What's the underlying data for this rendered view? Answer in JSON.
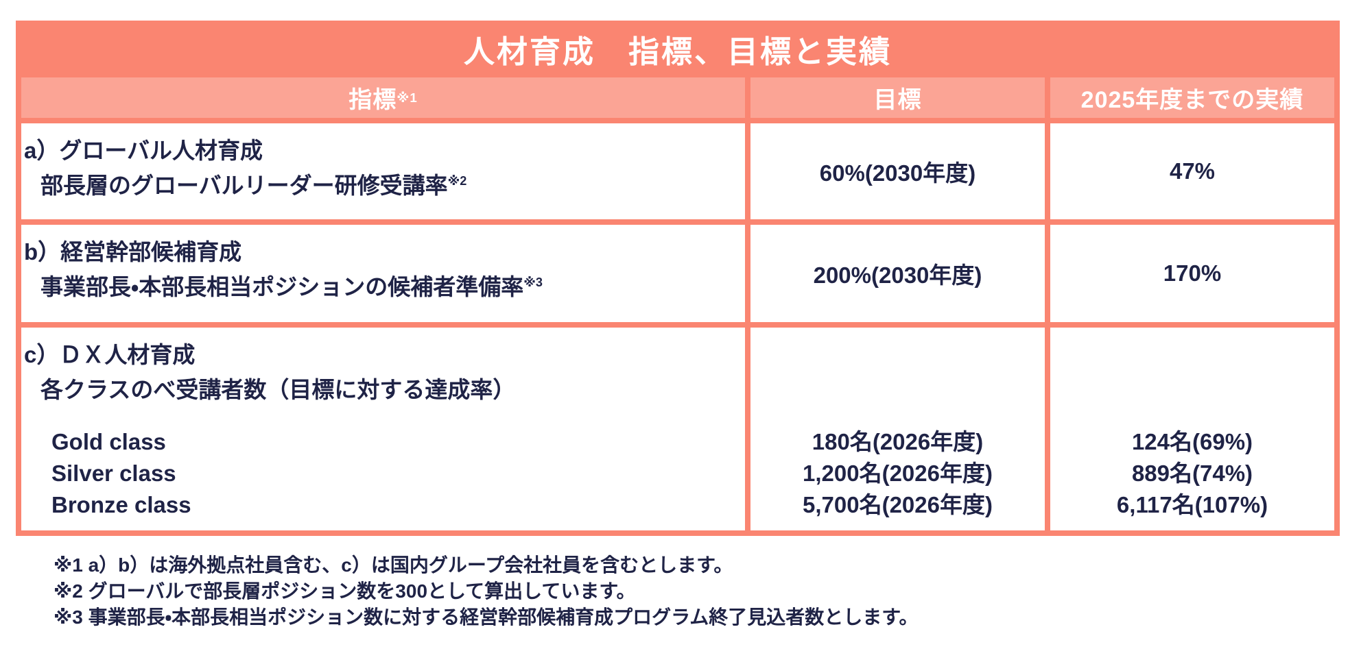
{
  "colors": {
    "accent": "#FA8571",
    "accent_light": "#FBA495",
    "ink": "#1F2346"
  },
  "title": "人材育成　指標、目標と実績",
  "header": {
    "indicator": "指標",
    "indicator_sup": "※1",
    "target": "目標",
    "result": "2025年度までの実績"
  },
  "rows": [
    {
      "label_line1": "a）グローバル人材育成",
      "label_line2": "部長層のグローバルリーダー研修受講率",
      "label_sup": "※2",
      "target": "60%(2030年度)",
      "result": "47%"
    },
    {
      "label_line1": "b）経営幹部候補育成",
      "label_line2": "事業部長・本部長相当ポジションの候補者準備率",
      "label_sup": "※3",
      "target": "200%(2030年度)",
      "result": "170%"
    },
    {
      "label_line1": "c）ＤＸ人材育成",
      "label_line2": "各クラスのべ受講者数（目標に対する達成率）",
      "classes": [
        "Gold class",
        "Silver class",
        "Bronze class"
      ],
      "targets": [
        "180名(2026年度)",
        "1,200名(2026年度)",
        "5,700名(2026年度)"
      ],
      "results": [
        "124名(69%)",
        "889名(74%)",
        "6,117名(107%)"
      ]
    }
  ],
  "footnotes": [
    "※1 a）b）は海外拠点社員含む、c）は国内グループ会社社員を含むとします。",
    "※2 グローバルで部長層ポジション数を300として算出しています。",
    "※3 事業部長・本部長相当ポジション数に対する経営幹部候補育成プログラム終了見込者数とします。"
  ]
}
